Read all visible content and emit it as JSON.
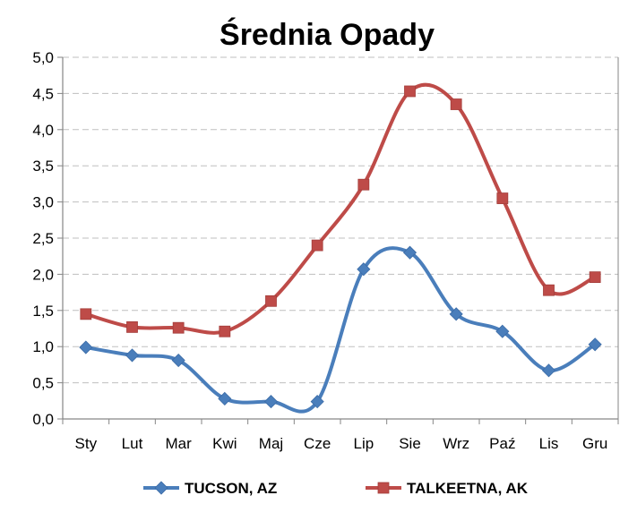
{
  "chart_data": {
    "type": "line",
    "title": "Średnia Opady",
    "categories": [
      "Sty",
      "Lut",
      "Mar",
      "Kwi",
      "Maj",
      "Cze",
      "Lip",
      "Sie",
      "Wrz",
      "Paź",
      "Lis",
      "Gru"
    ],
    "yticks": [
      "0,0",
      "0,5",
      "1,0",
      "1,5",
      "2,0",
      "2,5",
      "3,0",
      "3,5",
      "4,0",
      "4,5",
      "5,0"
    ],
    "ylim": [
      0,
      5
    ],
    "ytick_step": 0.5,
    "grid": "horizontal dashed",
    "smooth": true,
    "legend_position": "bottom",
    "series": [
      {
        "name": "TUCSON, AZ",
        "color": "#4a7ebb",
        "marker": "diamond",
        "values": [
          0.99,
          0.88,
          0.81,
          0.28,
          0.24,
          0.24,
          2.07,
          2.3,
          1.45,
          1.21,
          0.67,
          1.03
        ]
      },
      {
        "name": "TALKEETNA, AK",
        "color": "#be4b48",
        "marker": "square",
        "values": [
          1.45,
          1.27,
          1.26,
          1.21,
          1.63,
          2.4,
          3.24,
          4.53,
          4.35,
          3.05,
          1.78,
          1.96
        ]
      }
    ]
  }
}
